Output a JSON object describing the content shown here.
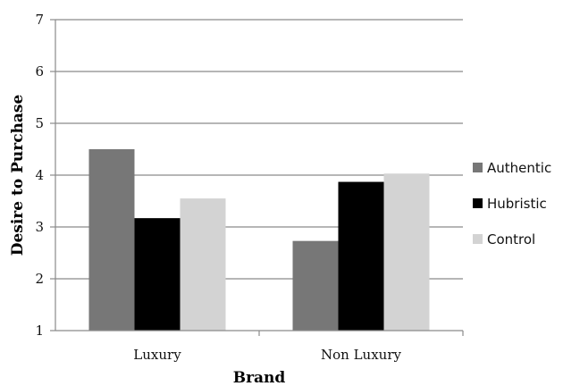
{
  "chart_data": {
    "type": "bar",
    "xlabel": "Brand",
    "ylabel": "Desire to Purchase",
    "categories": [
      "Luxury",
      "Non Luxury"
    ],
    "ylim": [
      1,
      7
    ],
    "yticks": [
      "1",
      "2",
      "3",
      "4",
      "5",
      "6",
      "7"
    ],
    "grid": true,
    "legend_position": "right",
    "series": [
      {
        "name": "Authentic",
        "values": [
          4.5,
          2.73
        ],
        "color": "#777777"
      },
      {
        "name": "Hubristic",
        "values": [
          3.17,
          3.87
        ],
        "color": "#000000"
      },
      {
        "name": "Control",
        "values": [
          3.55,
          4.03
        ],
        "color": "#d3d3d3"
      }
    ]
  }
}
